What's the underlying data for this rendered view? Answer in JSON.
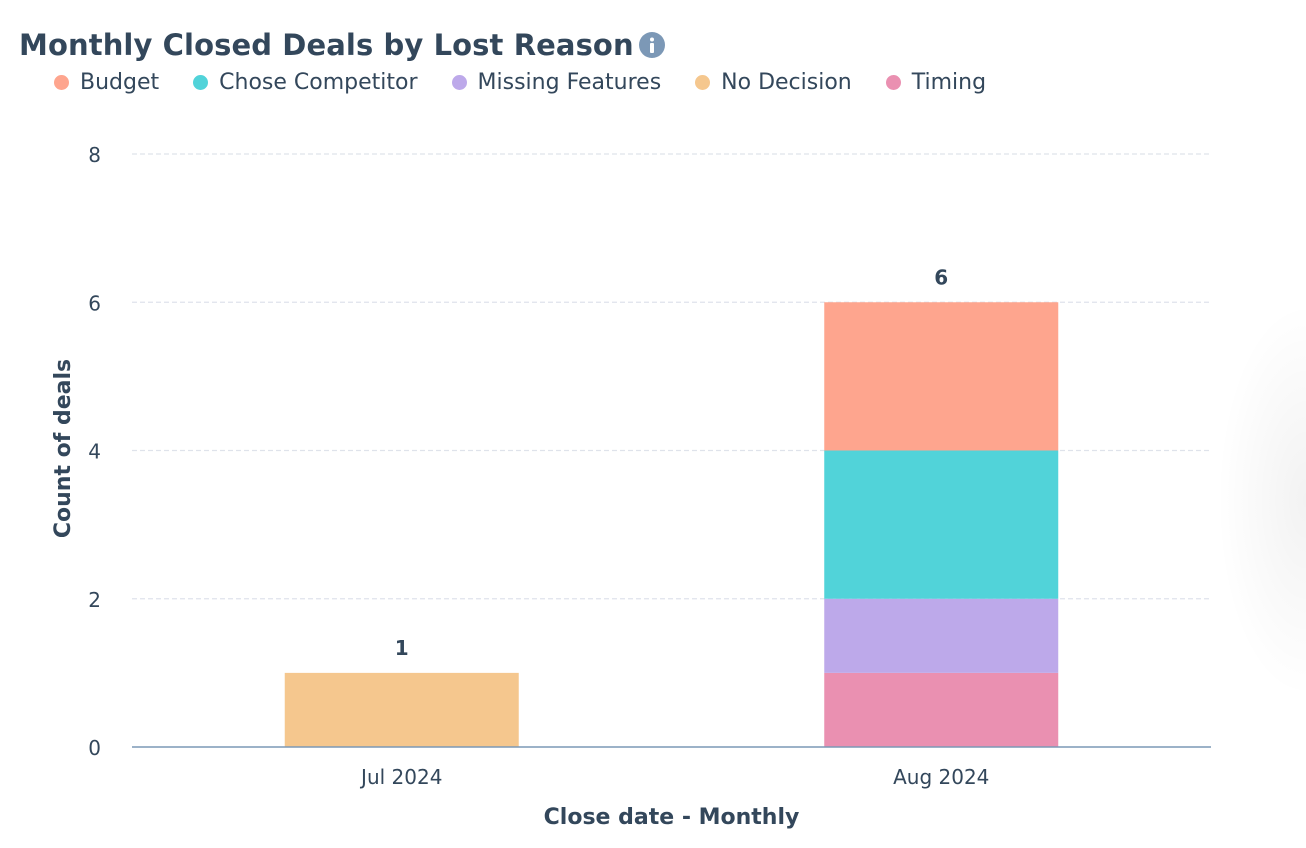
{
  "header": {
    "title": "Monthly Closed Deals by Lost Reason",
    "info_icon": "info-icon"
  },
  "colors": {
    "text": "#33475b",
    "grid": "#dfe3eb",
    "axis_line": "#7c98b6",
    "info_icon": "#7c98b6"
  },
  "chart_data": {
    "type": "bar",
    "stacked": true,
    "categories": [
      "Jul 2024",
      "Aug 2024"
    ],
    "series": [
      {
        "name": "Timing",
        "color": "#ea90b1",
        "values": [
          0,
          1
        ]
      },
      {
        "name": "Missing Features",
        "color": "#bda9ea",
        "values": [
          0,
          1
        ]
      },
      {
        "name": "Chose Competitor",
        "color": "#51d3d9",
        "values": [
          0,
          2
        ]
      },
      {
        "name": "Budget",
        "color": "#fea58e",
        "values": [
          0,
          2
        ]
      },
      {
        "name": "No Decision",
        "color": "#f5c78e",
        "values": [
          1,
          0
        ]
      }
    ],
    "totals": [
      1,
      6
    ],
    "legend": [
      {
        "name": "Budget",
        "color": "#fea58e"
      },
      {
        "name": "Chose Competitor",
        "color": "#51d3d9"
      },
      {
        "name": "Missing Features",
        "color": "#bda9ea"
      },
      {
        "name": "No Decision",
        "color": "#f5c78e"
      },
      {
        "name": "Timing",
        "color": "#ea90b1"
      }
    ],
    "legend_position": "top-left",
    "xlabel": "Close date - Monthly",
    "ylabel": "Count of deals",
    "ylim": [
      0,
      8
    ],
    "yticks": [
      0,
      2,
      4,
      6,
      8
    ],
    "grid": true
  }
}
